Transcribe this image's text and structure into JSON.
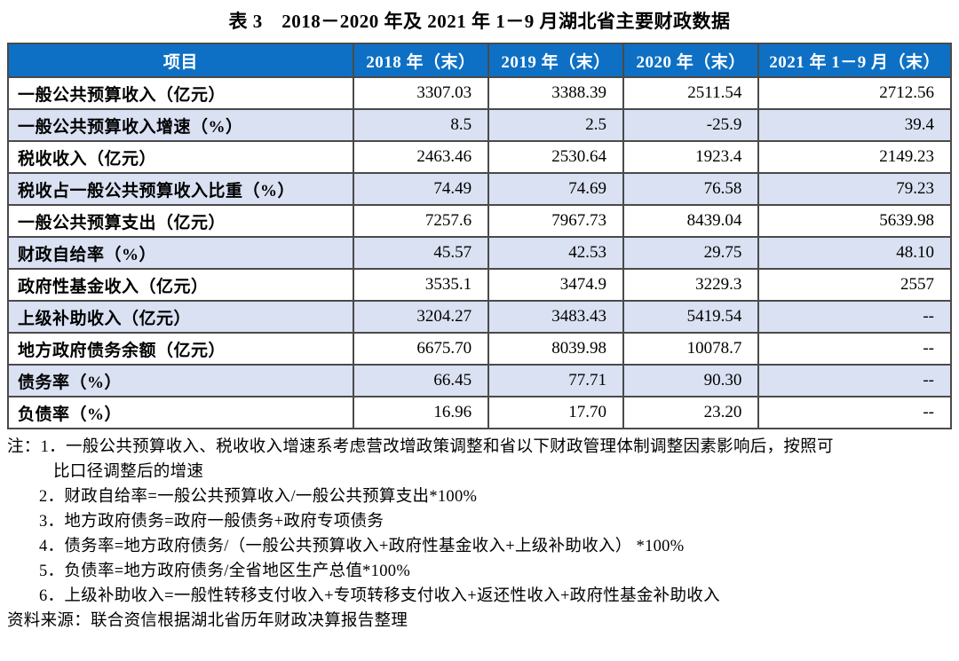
{
  "title": "表 3　2018－2020 年及 2021 年 1－9 月湖北省主要财政数据",
  "colors": {
    "header_bg": "#0d70c4",
    "header_text": "#ffffff",
    "alt_row_bg": "#d9e1f2",
    "border": "#4a4a4a"
  },
  "chart_data": {
    "type": "table",
    "title": "表 3　2018－2020 年及 2021 年 1－9 月湖北省主要财政数据",
    "columns": [
      "项目",
      "2018 年（末）",
      "2019 年（末）",
      "2020 年（末）",
      "2021 年 1－9 月（末）"
    ],
    "rows": [
      {
        "label": "一般公共预算收入（亿元）",
        "values": [
          "3307.03",
          "3388.39",
          "2511.54",
          "2712.56"
        ]
      },
      {
        "label": "一般公共预算收入增速（%）",
        "values": [
          "8.5",
          "2.5",
          "-25.9",
          "39.4"
        ]
      },
      {
        "label": "税收收入（亿元）",
        "values": [
          "2463.46",
          "2530.64",
          "1923.4",
          "2149.23"
        ]
      },
      {
        "label": "税收占一般公共预算收入比重（%）",
        "values": [
          "74.49",
          "74.69",
          "76.58",
          "79.23"
        ]
      },
      {
        "label": "一般公共预算支出（亿元）",
        "values": [
          "7257.6",
          "7967.73",
          "8439.04",
          "5639.98"
        ]
      },
      {
        "label": "财政自给率（%）",
        "values": [
          "45.57",
          "42.53",
          "29.75",
          "48.10"
        ]
      },
      {
        "label": "政府性基金收入（亿元）",
        "values": [
          "3535.1",
          "3474.9",
          "3229.3",
          "2557"
        ]
      },
      {
        "label": "上级补助收入（亿元）",
        "values": [
          "3204.27",
          "3483.43",
          "5419.54",
          "--"
        ]
      },
      {
        "label": "地方政府债务余额（亿元）",
        "values": [
          "6675.70",
          "8039.98",
          "10078.7",
          "--"
        ]
      },
      {
        "label": "债务率（%）",
        "values": [
          "66.45",
          "77.71",
          "90.30",
          "--"
        ]
      },
      {
        "label": "负债率（%）",
        "values": [
          "16.96",
          "17.70",
          "23.20",
          "--"
        ]
      }
    ]
  },
  "notes": {
    "lines": [
      {
        "text": "注：1．一般公共预算收入、税收收入增速系考虑营改增政策调整和省以下财政管理体制调整因素影响后，按照可",
        "indent": 0
      },
      {
        "text": "比口径调整后的增速",
        "indent": 2
      },
      {
        "text": "2．财政自给率=一般公共预算收入/一般公共预算支出*100%",
        "indent": 1
      },
      {
        "text": "3．地方政府债务=政府一般债务+政府专项债务",
        "indent": 1
      },
      {
        "text": "4．债务率=地方政府债务/（一般公共预算收入+政府性基金收入+上级补助收入） *100%",
        "indent": 1
      },
      {
        "text": "5．负债率=地方政府债务/全省地区生产总值*100%",
        "indent": 1
      },
      {
        "text": "6．上级补助收入=一般性转移支付收入+专项转移支付收入+返还性收入+政府性基金补助收入",
        "indent": 1
      }
    ]
  },
  "source": "资料来源：联合资信根据湖北省历年财政决算报告整理"
}
